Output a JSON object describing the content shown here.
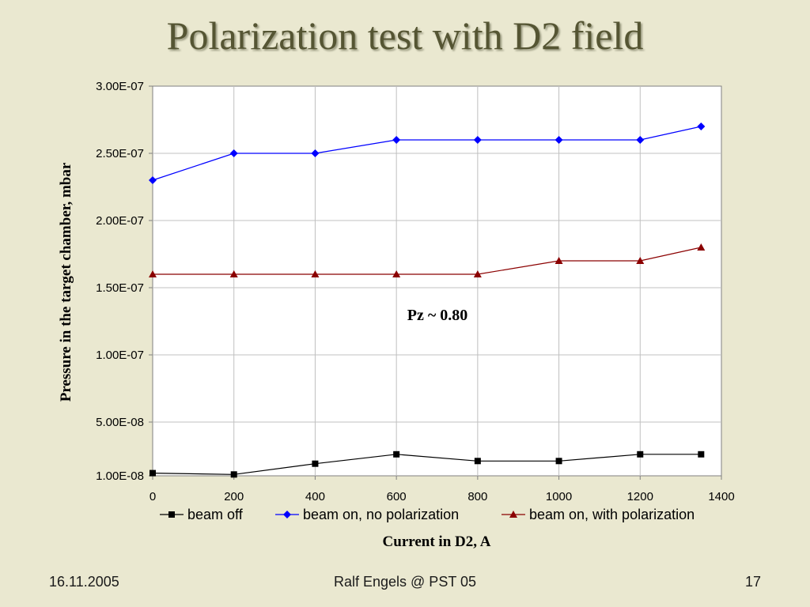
{
  "slide": {
    "title": "Polarization test with D2 field",
    "footer_date": "16.11.2005",
    "footer_center": "Ralf Engels @ PST 05",
    "footer_page": "17"
  },
  "chart_data": {
    "type": "line",
    "xlabel": "Current in D2, A",
    "ylabel": "Pressure in the target chamber, mbar",
    "annotation": "Pz ~ 0.80",
    "xlim": [
      0,
      1400
    ],
    "xticks": [
      0,
      200,
      400,
      600,
      800,
      1000,
      1200,
      1400
    ],
    "ylim": [
      1e-08,
      3e-07
    ],
    "ytick_labels": [
      "3.00E-07",
      "2.50E-07",
      "2.00E-07",
      "1.50E-07",
      "1.00E-07",
      "5.00E-08",
      "1.00E-08"
    ],
    "ytick_values": [
      3e-07,
      2.5e-07,
      2e-07,
      1.5e-07,
      1e-07,
      5e-08,
      1e-08
    ],
    "grid": true,
    "legend_position": "bottom",
    "series": [
      {
        "name": "beam off",
        "marker": "square",
        "color": "#000000",
        "x": [
          0,
          200,
          400,
          600,
          800,
          1000,
          1200,
          1350
        ],
        "y": [
          1.2e-08,
          1.1e-08,
          1.9e-08,
          2.6e-08,
          2.1e-08,
          2.1e-08,
          2.6e-08,
          2.6e-08
        ]
      },
      {
        "name": "beam on, no polarization",
        "marker": "diamond",
        "color": "#0000ff",
        "x": [
          0,
          200,
          400,
          600,
          800,
          1000,
          1200,
          1350
        ],
        "y": [
          2.3e-07,
          2.5e-07,
          2.5e-07,
          2.6e-07,
          2.6e-07,
          2.6e-07,
          2.6e-07,
          2.7e-07
        ]
      },
      {
        "name": "beam on, with polarization",
        "marker": "triangle",
        "color": "#8b0000",
        "x": [
          0,
          200,
          400,
          600,
          800,
          1000,
          1200,
          1350
        ],
        "y": [
          1.6e-07,
          1.6e-07,
          1.6e-07,
          1.6e-07,
          1.6e-07,
          1.7e-07,
          1.7e-07,
          1.8e-07
        ]
      }
    ]
  }
}
